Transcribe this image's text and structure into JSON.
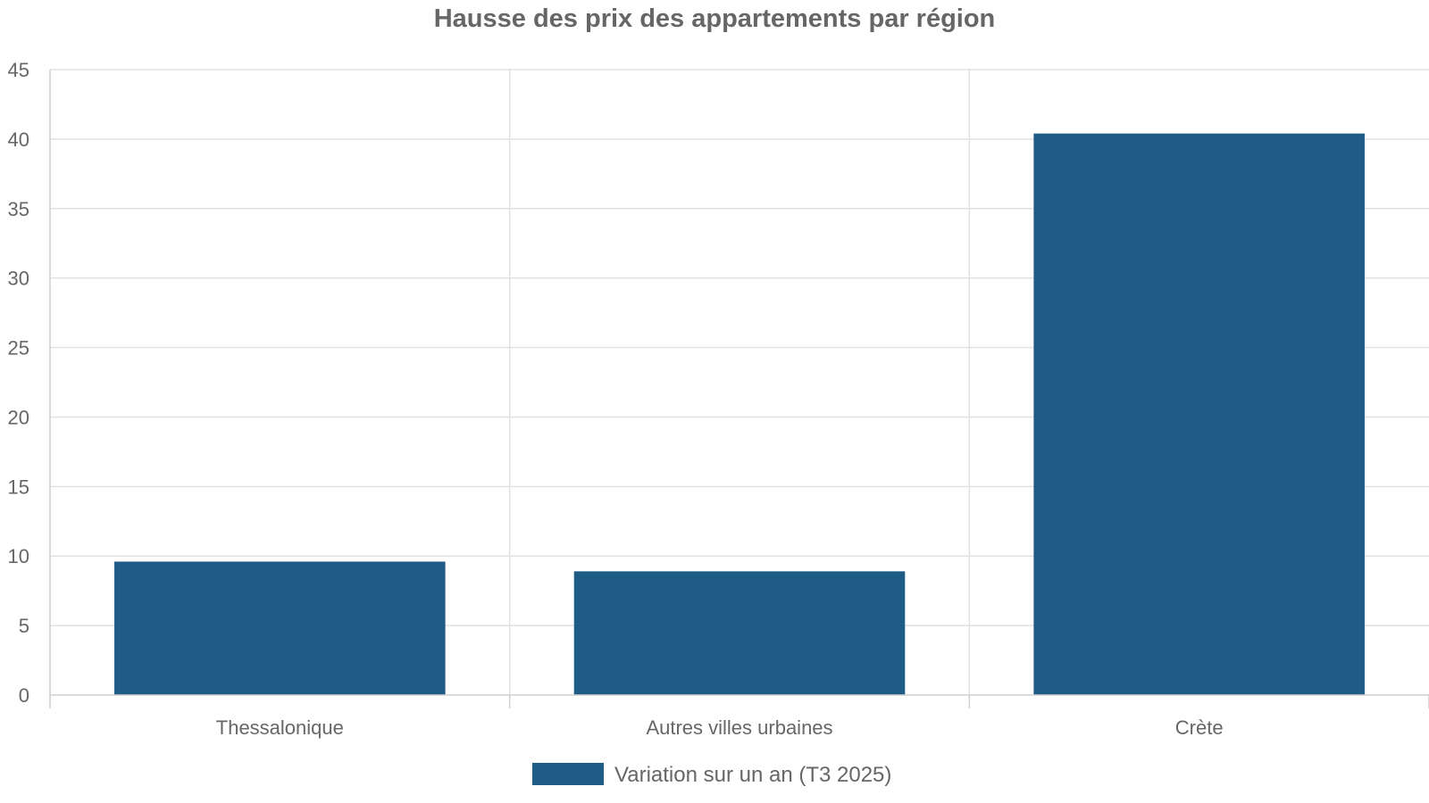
{
  "chart_data": {
    "type": "bar",
    "title": "Hausse des prix des appartements par région",
    "xlabel": "",
    "ylabel": "",
    "categories": [
      "Thessalonique",
      "Autres villes urbaines",
      "Crète"
    ],
    "series": [
      {
        "name": "Variation sur un an (T3 2025)",
        "values": [
          9.6,
          8.9,
          40.4
        ],
        "color": "#1f5c85"
      }
    ],
    "ylim": [
      0,
      45
    ],
    "yticks": [
      "0",
      "5",
      "10",
      "15",
      "20",
      "25",
      "30",
      "35",
      "40",
      "45"
    ],
    "grid": true,
    "legend_position": "bottom"
  }
}
